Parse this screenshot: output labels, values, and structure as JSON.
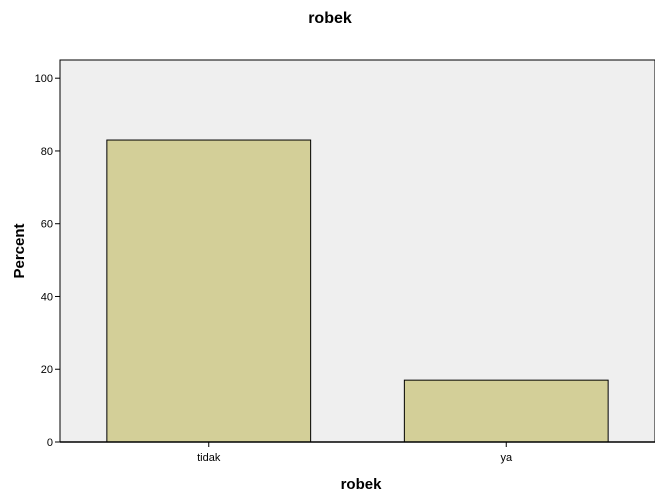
{
  "chart_data": {
    "type": "bar",
    "title": "robek",
    "xlabel": "robek",
    "ylabel": "Percent",
    "categories": [
      "tidak",
      "ya"
    ],
    "values": [
      83,
      17
    ],
    "ylim": [
      0,
      105
    ],
    "yticks": [
      0,
      20,
      40,
      60,
      80,
      100
    ],
    "grid": false,
    "colors": {
      "bar_fill": "#d3cf98",
      "bar_stroke": "#000000",
      "plot_background": "#efefef",
      "axis": "#000000"
    }
  }
}
